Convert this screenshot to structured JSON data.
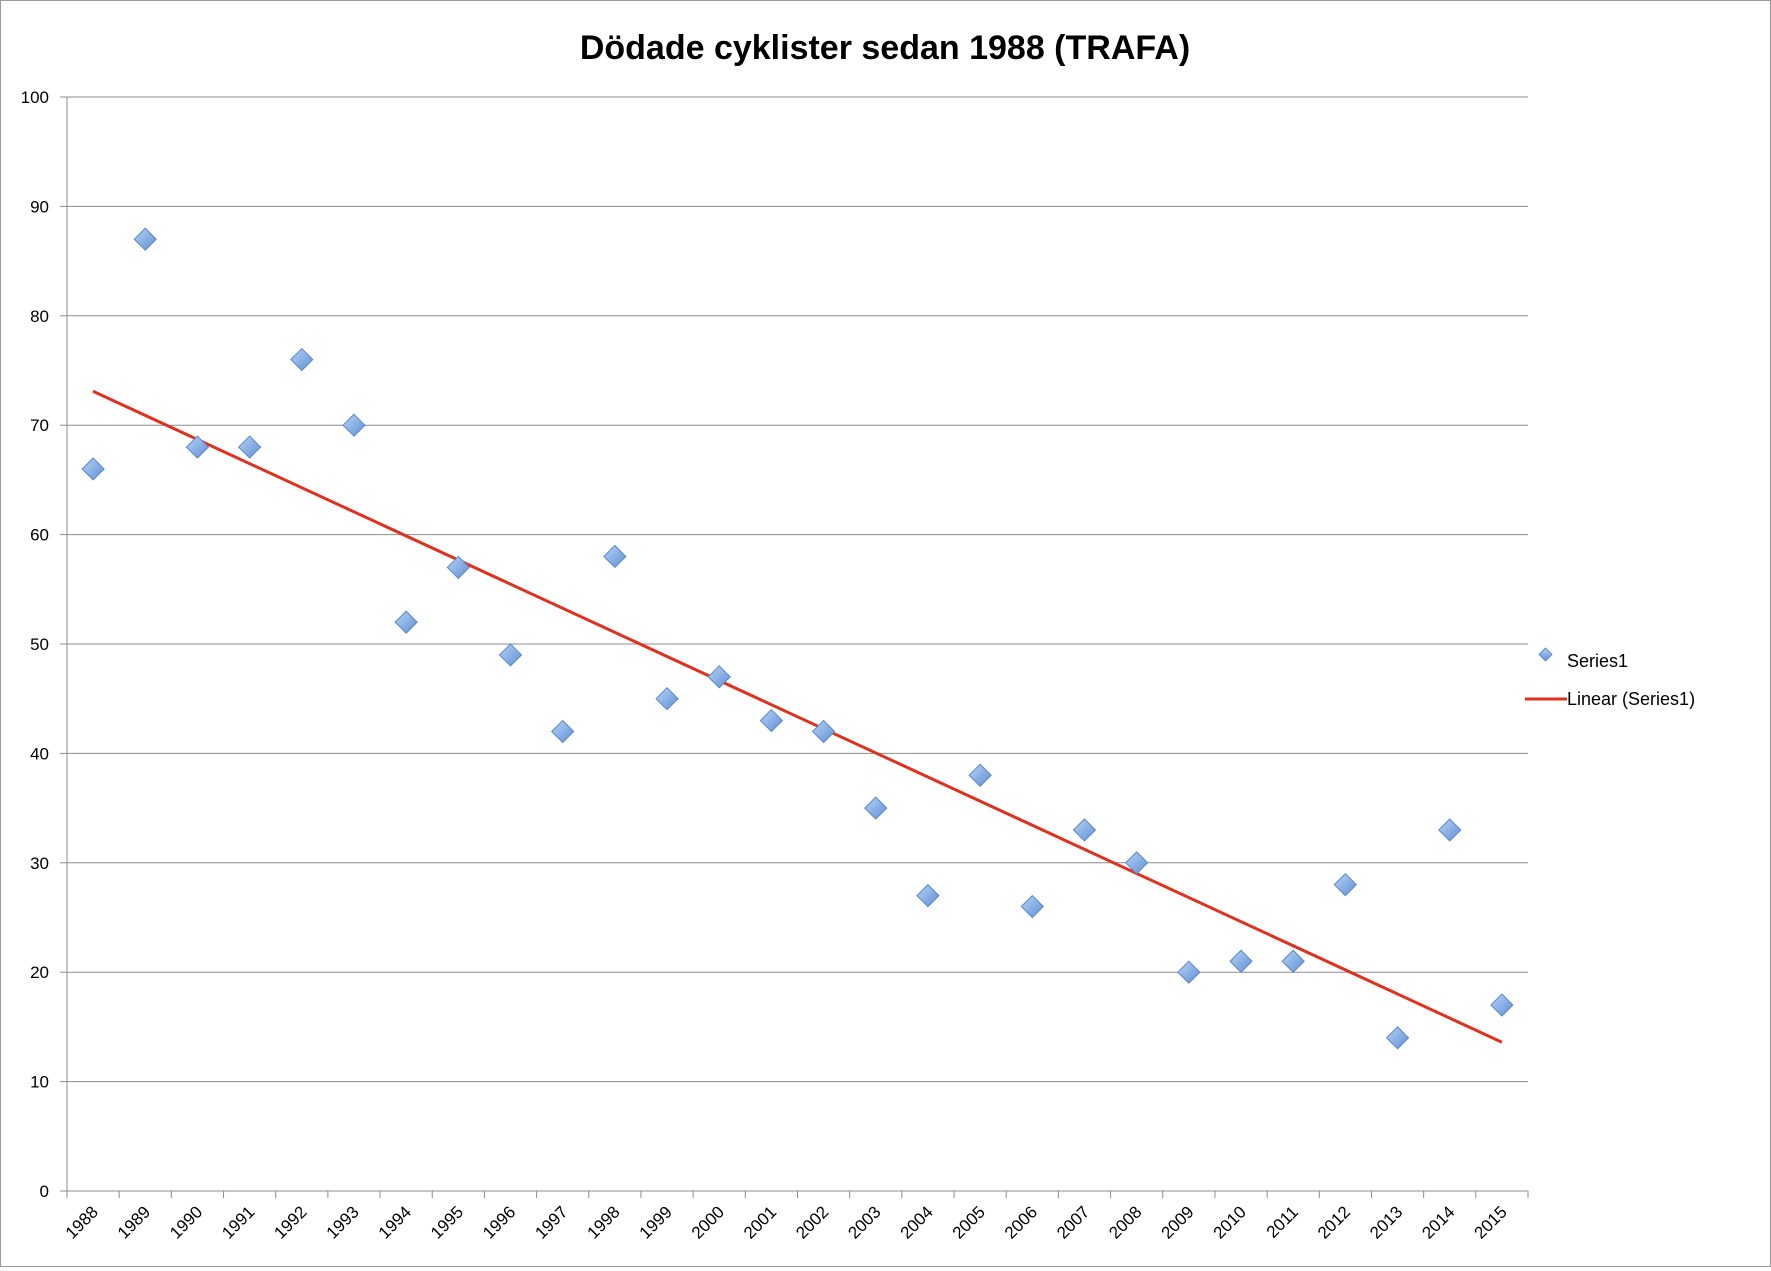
{
  "chart_data": {
    "type": "scatter",
    "title": "Dödade cyklister sedan 1988 (TRAFA)",
    "xlabel": "",
    "ylabel": "",
    "ylim": [
      0,
      100
    ],
    "yticks": [
      "0",
      "10",
      "20",
      "30",
      "40",
      "50",
      "60",
      "70",
      "80",
      "90",
      "100"
    ],
    "categories": [
      "1988",
      "1989",
      "1990",
      "1991",
      "1992",
      "1993",
      "1994",
      "1995",
      "1996",
      "1997",
      "1998",
      "1999",
      "2000",
      "2001",
      "2002",
      "2003",
      "2004",
      "2005",
      "2006",
      "2007",
      "2008",
      "2009",
      "2010",
      "2011",
      "2012",
      "2013",
      "2014",
      "2015"
    ],
    "series": [
      {
        "name": "Series1",
        "marker": "diamond",
        "color": "#7aa6e0",
        "values": [
          66,
          87,
          68,
          68,
          76,
          70,
          52,
          57,
          49,
          42,
          58,
          45,
          47,
          43,
          42,
          35,
          27,
          38,
          26,
          33,
          30,
          20,
          21,
          21,
          28,
          14,
          33,
          17
        ]
      }
    ],
    "trendline": {
      "name": "Linear (Series1)",
      "type": "linear",
      "color": "#e0301e",
      "start_value": 73.1,
      "end_value": 13.6
    },
    "grid": true,
    "legend": "right"
  }
}
